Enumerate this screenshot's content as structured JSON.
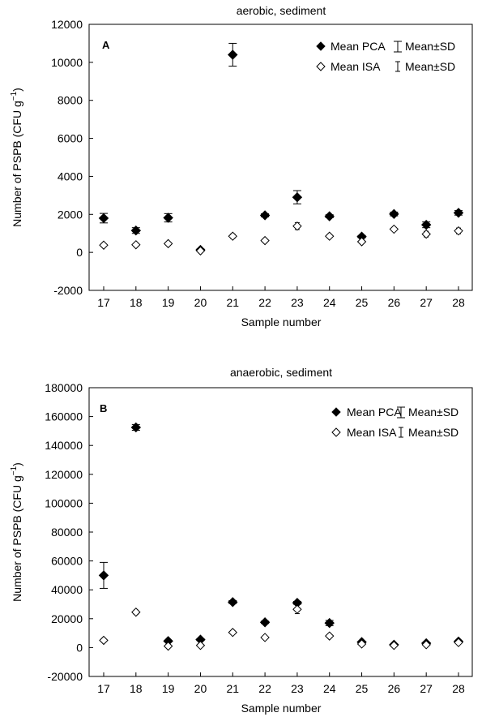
{
  "y_axis_label": "Number of PSPB (CFU g",
  "y_axis_label_sup": "−1",
  "y_axis_label_end": ")",
  "legend": {
    "mean_pca": "Mean PCA",
    "mean_isa": "Mean ISA",
    "sd_label": "Mean±SD"
  },
  "chart_data": [
    {
      "type": "scatter",
      "panel_label": "A",
      "title": "aerobic, sediment",
      "xlabel": "Sample number",
      "ylabel": "Number of PSPB (CFU g−1)",
      "categories": [
        "17",
        "18",
        "19",
        "20",
        "21",
        "22",
        "23",
        "24",
        "25",
        "26",
        "27",
        "28"
      ],
      "ylim": [
        -2000,
        12000
      ],
      "yticks": [
        "-2000",
        "0",
        "2000",
        "4000",
        "6000",
        "8000",
        "10000",
        "12000"
      ],
      "series": [
        {
          "name": "Mean PCA",
          "marker": "filled-diamond",
          "values": [
            1800,
            1150,
            1820,
            130,
            10400,
            1950,
            2900,
            1900,
            830,
            2020,
            1450,
            2080
          ],
          "sd": [
            250,
            150,
            220,
            50,
            600,
            80,
            350,
            80,
            60,
            100,
            150,
            120
          ]
        },
        {
          "name": "Mean ISA",
          "marker": "open-diamond",
          "values": [
            380,
            400,
            460,
            80,
            850,
            620,
            1380,
            850,
            560,
            1220,
            960,
            1130
          ],
          "sd": [
            40,
            40,
            40,
            30,
            120,
            60,
            180,
            60,
            50,
            100,
            150,
            150
          ]
        }
      ]
    },
    {
      "type": "scatter",
      "panel_label": "B",
      "title": "anaerobic, sediment",
      "xlabel": "Sample number",
      "ylabel": "Number of PSPB (CFU g−1)",
      "categories": [
        "17",
        "18",
        "19",
        "20",
        "21",
        "22",
        "23",
        "24",
        "25",
        "26",
        "27",
        "28"
      ],
      "ylim": [
        -20000,
        180000
      ],
      "yticks": [
        "-20000",
        "0",
        "20000",
        "40000",
        "60000",
        "80000",
        "100000",
        "120000",
        "140000",
        "160000",
        "180000"
      ],
      "series": [
        {
          "name": "Mean PCA",
          "marker": "filled-diamond",
          "values": [
            50000,
            152500,
            4500,
            5500,
            31500,
            17500,
            31000,
            17000,
            3800,
            2000,
            3000,
            4200
          ],
          "sd": [
            9000,
            2000,
            500,
            600,
            1000,
            800,
            1000,
            1800,
            400,
            300,
            400,
            500
          ]
        },
        {
          "name": "Mean ISA",
          "marker": "open-diamond",
          "values": [
            5000,
            24500,
            1000,
            1500,
            10500,
            7000,
            26500,
            8000,
            2500,
            1500,
            2000,
            3500
          ],
          "sd": [
            500,
            1500,
            300,
            300,
            600,
            500,
            3000,
            800,
            400,
            300,
            300,
            400
          ]
        }
      ]
    }
  ]
}
